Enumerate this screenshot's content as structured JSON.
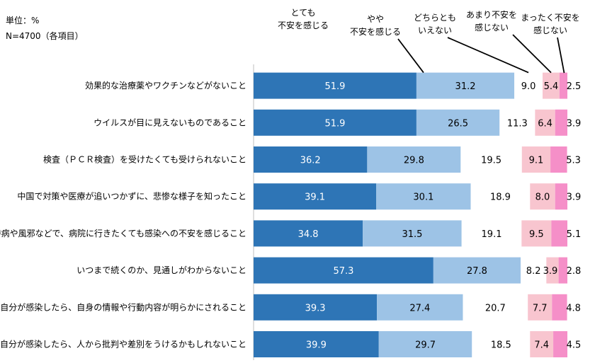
{
  "header": {
    "unit": "単位：%",
    "n": "N=4700（各項目）"
  },
  "chart_data": {
    "type": "bar",
    "stacked": true,
    "orientation": "horizontal",
    "xlim": [
      0,
      100
    ],
    "categories": [
      "効果的な治療薬やワクチンなどがないこと",
      "ウイルスが目に見えないものであること",
      "検査（ＰＣＲ検査）を受けたくても受けられないこと",
      "中国で対策や医療が追いつかずに、悲惨な様子を知ったこと",
      "持病や風邪などで、病院に行きたくても感染への不安を感じること",
      "いつまで続くのか、見通しがわからないこと",
      "自分が感染したら、自身の情報や行動内容が明らかにされること",
      "自分が感染したら、人から批判や差別をうけるかもしれないこと"
    ],
    "series": [
      {
        "name": "とても\n不安を感じる",
        "color": "#2e75b6",
        "label_color": "#ffffff",
        "values": [
          51.9,
          51.9,
          36.2,
          39.1,
          34.8,
          57.3,
          39.3,
          39.9
        ]
      },
      {
        "name": "やや\n不安を感じる",
        "color": "#9dc3e6",
        "label_color": "#000000",
        "values": [
          31.2,
          26.5,
          29.8,
          30.1,
          31.5,
          27.8,
          27.4,
          29.7
        ]
      },
      {
        "name": "どちらとも\nいえない",
        "color": "#ffffff",
        "label_color": "#000000",
        "values": [
          9.0,
          11.3,
          19.5,
          18.9,
          19.1,
          8.2,
          20.7,
          18.5
        ]
      },
      {
        "name": "あまり不安を\n感じない",
        "color": "#f8c5cf",
        "label_color": "#000000",
        "values": [
          5.4,
          6.4,
          9.1,
          8.0,
          9.5,
          3.9,
          7.7,
          7.4
        ]
      },
      {
        "name": "まったく不安を\n感じない",
        "color": "#f58fc8",
        "label_color": "#000000",
        "values": [
          2.5,
          3.9,
          5.3,
          3.9,
          5.1,
          2.8,
          4.8,
          4.5
        ]
      }
    ]
  }
}
